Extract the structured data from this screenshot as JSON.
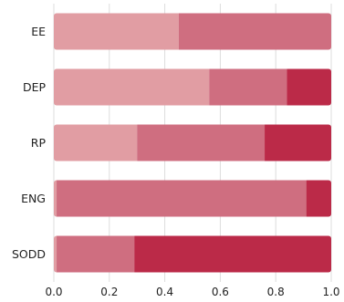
{
  "chart_data": {
    "type": "bar",
    "orientation": "horizontal",
    "stacked": true,
    "categories": [
      "EE",
      "DEP",
      "RP",
      "ENG",
      "SODD"
    ],
    "series": [
      {
        "values": [
          0.45,
          0.56,
          0.3,
          0.01,
          0.01
        ]
      },
      {
        "values": [
          0.55,
          0.28,
          0.46,
          0.9,
          0.28
        ]
      },
      {
        "values": [
          0.0,
          0.16,
          0.24,
          0.09,
          0.71
        ]
      }
    ],
    "colors": [
      "#e19da3",
      "#cf6e80",
      "#bb2a48"
    ],
    "xlim": [
      0,
      1.0
    ],
    "xticks": [
      "0.0",
      "0.2",
      "0.4",
      "0.6",
      "0.8",
      "1.0"
    ],
    "grid": true,
    "title": "",
    "xlabel": "",
    "ylabel": ""
  }
}
